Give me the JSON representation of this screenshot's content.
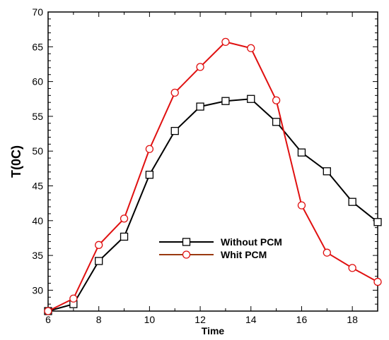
{
  "chart_data": {
    "type": "line",
    "xlabel": "Time",
    "ylabel": "T(0C)",
    "xlim": [
      6,
      19
    ],
    "ylim": [
      27,
      70
    ],
    "xticks": [
      6,
      8,
      10,
      12,
      14,
      16,
      18
    ],
    "yticks": [
      30,
      35,
      40,
      45,
      50,
      55,
      60,
      65,
      70
    ],
    "legend_position": "lower-center",
    "grid": false,
    "x": [
      6,
      7,
      8,
      9,
      10,
      11,
      12,
      13,
      14,
      15,
      16,
      17,
      18,
      19
    ],
    "series": [
      {
        "name": "Without PCM",
        "color": "#000000",
        "marker": "square",
        "values": [
          27.0,
          28.0,
          34.2,
          37.7,
          46.6,
          52.9,
          56.4,
          57.2,
          57.5,
          54.2,
          49.8,
          47.1,
          42.7,
          39.8
        ]
      },
      {
        "name": "Whit PCM",
        "color": "#e01010",
        "marker": "circle",
        "values": [
          27.0,
          28.8,
          36.5,
          40.3,
          50.3,
          58.4,
          62.1,
          65.7,
          64.8,
          57.3,
          42.2,
          35.4,
          33.2,
          31.2
        ]
      }
    ]
  }
}
